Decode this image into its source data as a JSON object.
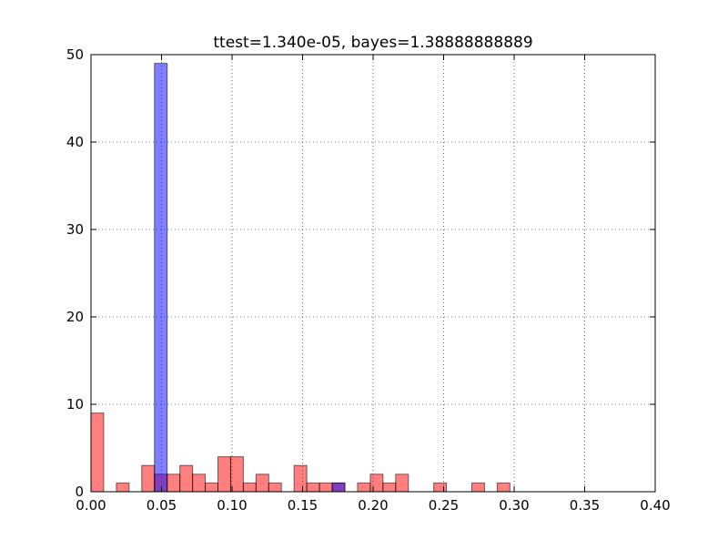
{
  "chart_data": {
    "type": "bar",
    "title": "ttest=1.340e-05, bayes=1.38888888889",
    "xlabel": "",
    "ylabel": "",
    "xlim": [
      0.0,
      0.4
    ],
    "ylim": [
      0,
      50
    ],
    "grid": true,
    "bin_width": 0.009,
    "x_ticks": [
      {
        "value": 0.0,
        "label": "0.00"
      },
      {
        "value": 0.05,
        "label": "0.05"
      },
      {
        "value": 0.1,
        "label": "0.10"
      },
      {
        "value": 0.15,
        "label": "0.15"
      },
      {
        "value": 0.2,
        "label": "0.20"
      },
      {
        "value": 0.25,
        "label": "0.25"
      },
      {
        "value": 0.3,
        "label": "0.30"
      },
      {
        "value": 0.35,
        "label": "0.35"
      },
      {
        "value": 0.4,
        "label": "0.40"
      }
    ],
    "y_ticks": [
      {
        "value": 0,
        "label": "0"
      },
      {
        "value": 10,
        "label": "10"
      },
      {
        "value": 20,
        "label": "20"
      },
      {
        "value": 30,
        "label": "30"
      },
      {
        "value": 40,
        "label": "40"
      },
      {
        "value": 50,
        "label": "50"
      }
    ],
    "series": [
      {
        "color": "#ff0000",
        "alpha": 0.5,
        "bins": [
          {
            "start": 0.0,
            "count": 9
          },
          {
            "start": 0.018,
            "count": 1
          },
          {
            "start": 0.036,
            "count": 3
          },
          {
            "start": 0.045,
            "count": 2
          },
          {
            "start": 0.054,
            "count": 2
          },
          {
            "start": 0.063,
            "count": 3
          },
          {
            "start": 0.072,
            "count": 2
          },
          {
            "start": 0.081,
            "count": 1
          },
          {
            "start": 0.09,
            "count": 4
          },
          {
            "start": 0.099,
            "count": 4
          },
          {
            "start": 0.108,
            "count": 1
          },
          {
            "start": 0.117,
            "count": 2
          },
          {
            "start": 0.126,
            "count": 1
          },
          {
            "start": 0.144,
            "count": 3
          },
          {
            "start": 0.153,
            "count": 1
          },
          {
            "start": 0.162,
            "count": 1
          },
          {
            "start": 0.171,
            "count": 1
          },
          {
            "start": 0.189,
            "count": 1
          },
          {
            "start": 0.198,
            "count": 2
          },
          {
            "start": 0.207,
            "count": 1
          },
          {
            "start": 0.216,
            "count": 2
          },
          {
            "start": 0.243,
            "count": 1
          },
          {
            "start": 0.27,
            "count": 1
          },
          {
            "start": 0.288,
            "count": 1
          }
        ]
      },
      {
        "color": "#0000ff",
        "alpha": 0.5,
        "bins": [
          {
            "start": 0.045,
            "count": 49
          },
          {
            "start": 0.171,
            "count": 1
          }
        ]
      }
    ]
  }
}
